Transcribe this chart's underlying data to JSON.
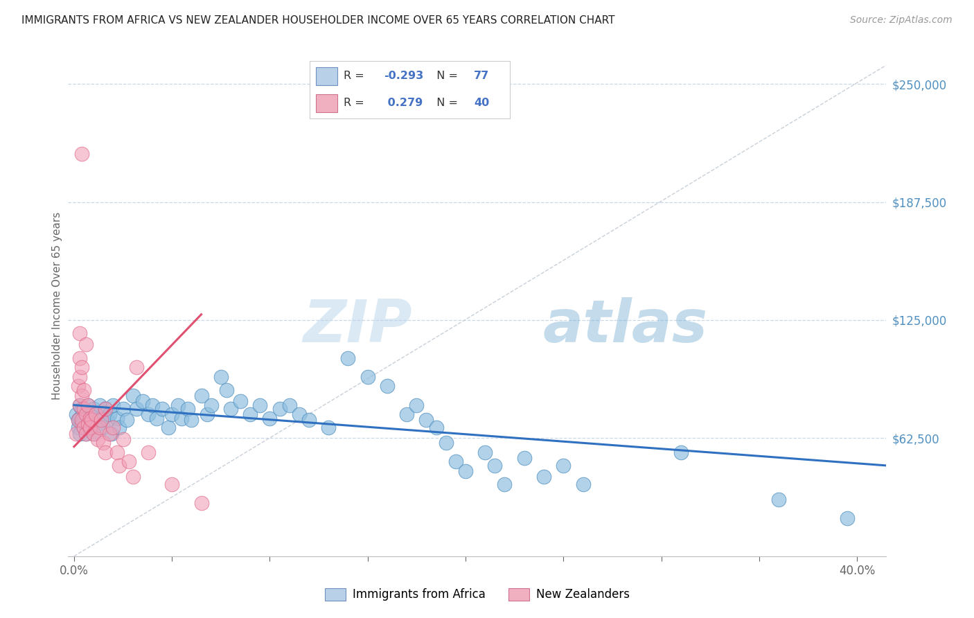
{
  "title": "IMMIGRANTS FROM AFRICA VS NEW ZEALANDER HOUSEHOLDER INCOME OVER 65 YEARS CORRELATION CHART",
  "source": "Source: ZipAtlas.com",
  "ylabel": "Householder Income Over 65 years",
  "ylim": [
    0,
    265000
  ],
  "xlim": [
    -0.003,
    0.415
  ],
  "watermark_zip": "ZIP",
  "watermark_atlas": "atlas",
  "blue_color": "#90bfe0",
  "pink_color": "#f0a0b8",
  "blue_edge_color": "#5090c0",
  "pink_edge_color": "#e06080",
  "blue_line_color": "#3070c0",
  "pink_line_color": "#e05070",
  "dashed_line_color": "#c8d0d8",
  "grid_color": "#c8d8e8",
  "ylabel_tick_vals": [
    62500,
    125000,
    187500,
    250000
  ],
  "ylabel_ticks": [
    "$62,500",
    "$125,000",
    "$187,500",
    "$250,000"
  ],
  "blue_scatter": [
    [
      0.001,
      75000
    ],
    [
      0.002,
      72000
    ],
    [
      0.002,
      68000
    ],
    [
      0.003,
      80000
    ],
    [
      0.003,
      73000
    ],
    [
      0.003,
      65000
    ],
    [
      0.004,
      70000
    ],
    [
      0.004,
      78000
    ],
    [
      0.005,
      72000
    ],
    [
      0.005,
      68000
    ],
    [
      0.006,
      75000
    ],
    [
      0.006,
      65000
    ],
    [
      0.007,
      80000
    ],
    [
      0.007,
      70000
    ],
    [
      0.008,
      73000
    ],
    [
      0.008,
      68000
    ],
    [
      0.009,
      72000
    ],
    [
      0.01,
      78000
    ],
    [
      0.01,
      65000
    ],
    [
      0.011,
      75000
    ],
    [
      0.012,
      70000
    ],
    [
      0.013,
      80000
    ],
    [
      0.014,
      73000
    ],
    [
      0.015,
      68000
    ],
    [
      0.016,
      78000
    ],
    [
      0.017,
      72000
    ],
    [
      0.018,
      75000
    ],
    [
      0.019,
      65000
    ],
    [
      0.02,
      80000
    ],
    [
      0.022,
      73000
    ],
    [
      0.023,
      68000
    ],
    [
      0.025,
      78000
    ],
    [
      0.027,
      72000
    ],
    [
      0.03,
      85000
    ],
    [
      0.032,
      78000
    ],
    [
      0.035,
      82000
    ],
    [
      0.038,
      75000
    ],
    [
      0.04,
      80000
    ],
    [
      0.042,
      73000
    ],
    [
      0.045,
      78000
    ],
    [
      0.048,
      68000
    ],
    [
      0.05,
      75000
    ],
    [
      0.053,
      80000
    ],
    [
      0.055,
      73000
    ],
    [
      0.058,
      78000
    ],
    [
      0.06,
      72000
    ],
    [
      0.065,
      85000
    ],
    [
      0.068,
      75000
    ],
    [
      0.07,
      80000
    ],
    [
      0.075,
      95000
    ],
    [
      0.078,
      88000
    ],
    [
      0.08,
      78000
    ],
    [
      0.085,
      82000
    ],
    [
      0.09,
      75000
    ],
    [
      0.095,
      80000
    ],
    [
      0.1,
      73000
    ],
    [
      0.105,
      78000
    ],
    [
      0.11,
      80000
    ],
    [
      0.115,
      75000
    ],
    [
      0.12,
      72000
    ],
    [
      0.13,
      68000
    ],
    [
      0.14,
      105000
    ],
    [
      0.15,
      95000
    ],
    [
      0.16,
      90000
    ],
    [
      0.17,
      75000
    ],
    [
      0.175,
      80000
    ],
    [
      0.18,
      72000
    ],
    [
      0.185,
      68000
    ],
    [
      0.19,
      60000
    ],
    [
      0.195,
      50000
    ],
    [
      0.2,
      45000
    ],
    [
      0.21,
      55000
    ],
    [
      0.215,
      48000
    ],
    [
      0.22,
      38000
    ],
    [
      0.23,
      52000
    ],
    [
      0.24,
      42000
    ],
    [
      0.25,
      48000
    ],
    [
      0.26,
      38000
    ],
    [
      0.31,
      55000
    ],
    [
      0.36,
      30000
    ],
    [
      0.395,
      20000
    ]
  ],
  "pink_scatter": [
    [
      0.001,
      65000
    ],
    [
      0.002,
      72000
    ],
    [
      0.002,
      90000
    ],
    [
      0.003,
      80000
    ],
    [
      0.003,
      95000
    ],
    [
      0.003,
      105000
    ],
    [
      0.003,
      118000
    ],
    [
      0.004,
      85000
    ],
    [
      0.004,
      100000
    ],
    [
      0.004,
      72000
    ],
    [
      0.005,
      78000
    ],
    [
      0.005,
      88000
    ],
    [
      0.005,
      68000
    ],
    [
      0.006,
      75000
    ],
    [
      0.006,
      112000
    ],
    [
      0.006,
      65000
    ],
    [
      0.007,
      80000
    ],
    [
      0.007,
      70000
    ],
    [
      0.008,
      73000
    ],
    [
      0.008,
      68000
    ],
    [
      0.009,
      72000
    ],
    [
      0.01,
      65000
    ],
    [
      0.011,
      75000
    ],
    [
      0.012,
      62000
    ],
    [
      0.013,
      68000
    ],
    [
      0.014,
      72000
    ],
    [
      0.015,
      60000
    ],
    [
      0.016,
      55000
    ],
    [
      0.016,
      78000
    ],
    [
      0.018,
      65000
    ],
    [
      0.02,
      68000
    ],
    [
      0.022,
      55000
    ],
    [
      0.023,
      48000
    ],
    [
      0.025,
      62000
    ],
    [
      0.028,
      50000
    ],
    [
      0.03,
      42000
    ],
    [
      0.032,
      100000
    ],
    [
      0.038,
      55000
    ],
    [
      0.05,
      38000
    ],
    [
      0.065,
      28000
    ],
    [
      0.004,
      213000
    ]
  ],
  "blue_line_x": [
    0.0,
    0.415
  ],
  "blue_line_y": [
    80000,
    48000
  ],
  "pink_line_x": [
    0.0,
    0.065
  ],
  "pink_line_y": [
    58000,
    128000
  ],
  "diag_line_x": [
    0.0,
    0.415
  ],
  "diag_line_y": [
    0,
    260000
  ]
}
